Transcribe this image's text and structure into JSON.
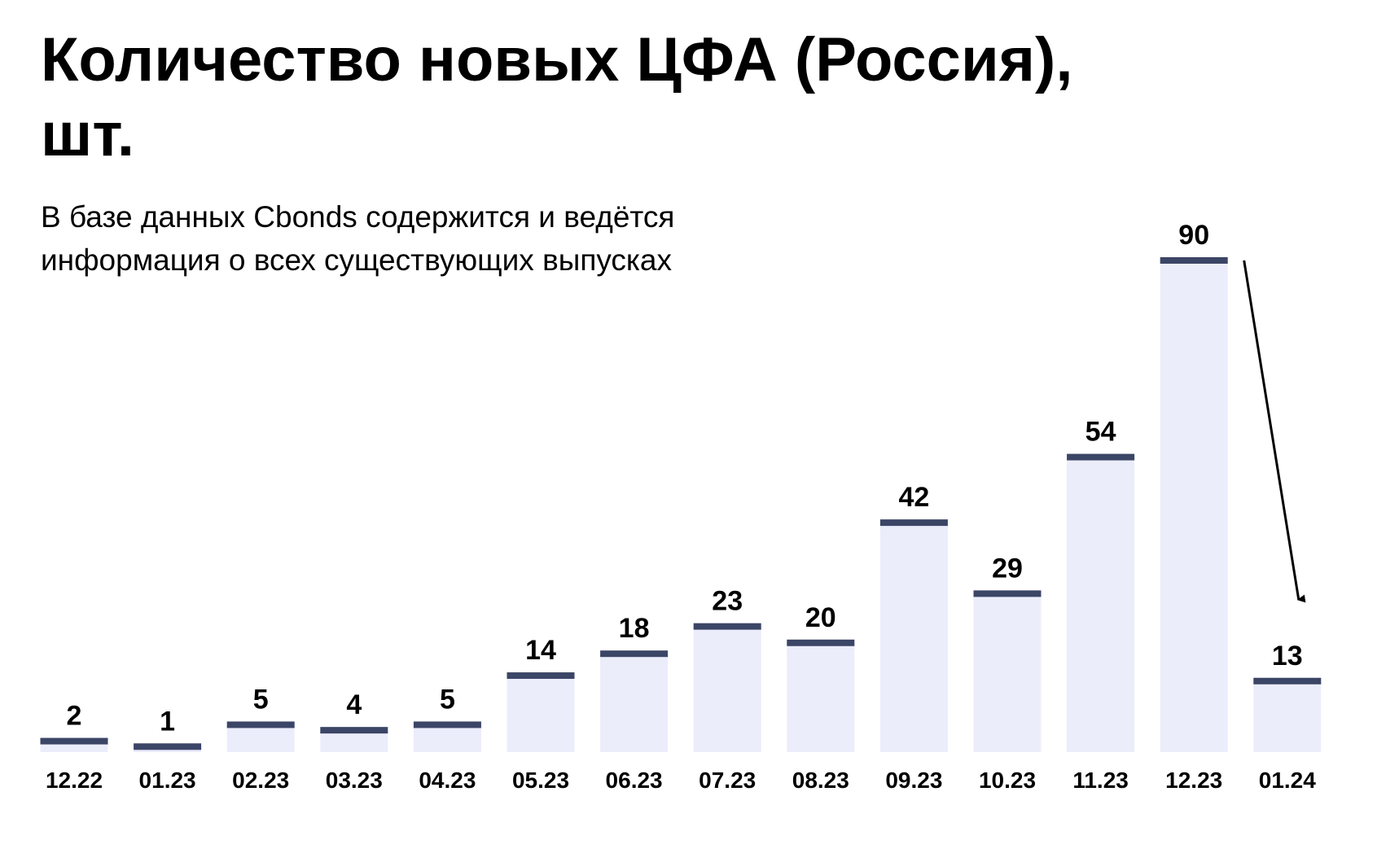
{
  "chart_data": {
    "type": "bar",
    "title": "Количество новых ЦФА (Россия), шт.",
    "subtitle": "В базе данных Cbonds содержится и ведётся информация о всех существующих выпусках",
    "xlabel": "",
    "ylabel": "",
    "ylim": [
      0,
      90
    ],
    "grid": false,
    "categories": [
      "12.22",
      "01.23",
      "02.23",
      "03.23",
      "04.23",
      "05.23",
      "06.23",
      "07.23",
      "08.23",
      "09.23",
      "10.23",
      "11.23",
      "12.23",
      "01.24"
    ],
    "values": [
      2,
      1,
      5,
      4,
      5,
      14,
      18,
      23,
      20,
      42,
      29,
      54,
      90,
      13
    ],
    "annotations": [
      {
        "type": "arrow",
        "from_category": "12.23",
        "to_category": "01.24"
      }
    ]
  },
  "colors": {
    "bar_fill": "#ebedfb",
    "bar_cap": "#3b4566",
    "text": "#000000",
    "background": "#ffffff"
  }
}
